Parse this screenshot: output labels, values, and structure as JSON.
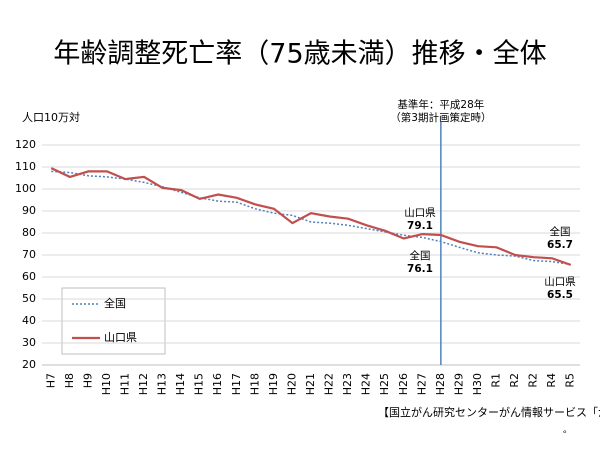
{
  "chart_data": {
    "type": "line",
    "title": "年齢調整死亡率（75歳未満）推移・全体",
    "y_axis_label": "人口10万対",
    "source": "【国立がん研究センターがん情報サービス「がん統計」（人口動態統計）】",
    "footnote": "。",
    "categories": [
      "H7",
      "H8",
      "H9",
      "H10",
      "H11",
      "H12",
      "H13",
      "H14",
      "H15",
      "H16",
      "H17",
      "H18",
      "H19",
      "H20",
      "H21",
      "H22",
      "H23",
      "H24",
      "H25",
      "H26",
      "H27",
      "H28",
      "H29",
      "H30",
      "R1",
      "R2",
      "R2",
      "R4",
      "R5"
    ],
    "series": [
      {
        "name": "全国",
        "color": "#4f81bd",
        "dash": "dotted",
        "values": [
          108,
          107.5,
          106,
          105.5,
          104.5,
          103,
          101,
          98.5,
          96,
          94.5,
          94,
          91,
          89,
          88,
          85,
          84.5,
          83.5,
          82,
          80.5,
          79,
          78,
          76.1,
          73.5,
          71,
          70,
          69.5,
          67.5,
          67,
          65.7
        ]
      },
      {
        "name": "山口県",
        "color": "#c0504d",
        "dash": "solid",
        "values": [
          109.5,
          105.5,
          108,
          108,
          104.5,
          105.5,
          100.5,
          99.5,
          95.5,
          97.5,
          96,
          93,
          91,
          84.5,
          89,
          87.5,
          86.5,
          83.5,
          81,
          77.5,
          79.5,
          79.1,
          76,
          74,
          73.5,
          70,
          69,
          68.5,
          65.5
        ]
      }
    ],
    "ylim": [
      20,
      120
    ],
    "yticks": [
      20,
      30,
      40,
      50,
      60,
      70,
      80,
      90,
      100,
      110,
      120
    ],
    "grid": true,
    "reference_line": {
      "category": "H28",
      "color": "#4f81bd",
      "label_lines": [
        "基準年：平成28年",
        "（第3期計画策定時）"
      ]
    }
  }
}
